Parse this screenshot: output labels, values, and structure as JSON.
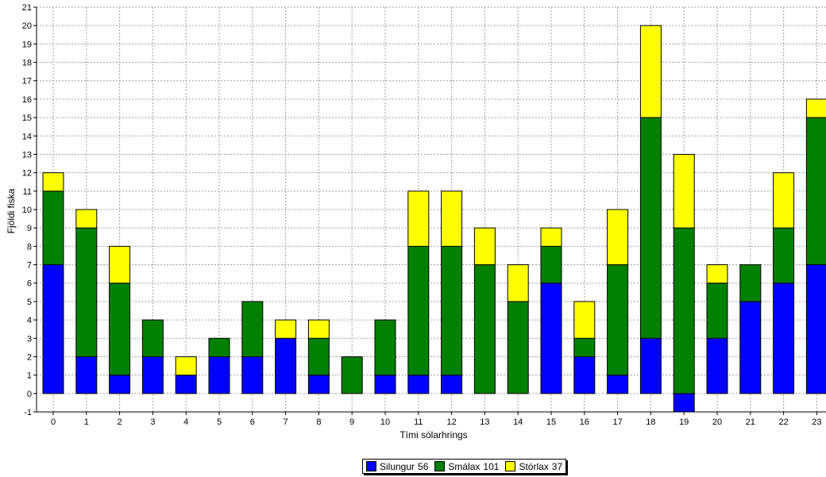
{
  "chart_data": {
    "type": "bar",
    "stacked": true,
    "xlabel": "Tími sólarhrings",
    "ylabel": "Fjöldi fiska",
    "ylim": [
      -1,
      21
    ],
    "grid": true,
    "legend_position": "bottom-center",
    "categories": [
      "0",
      "1",
      "2",
      "3",
      "4",
      "5",
      "6",
      "7",
      "8",
      "9",
      "10",
      "11",
      "12",
      "13",
      "14",
      "15",
      "16",
      "17",
      "18",
      "19",
      "20",
      "21",
      "22",
      "23"
    ],
    "series": [
      {
        "name": "Silungur",
        "total": "56",
        "color": "#0000ff",
        "values": [
          7,
          2,
          1,
          2,
          1,
          2,
          2,
          3,
          1,
          0,
          1,
          1,
          1,
          0,
          0,
          6,
          2,
          1,
          3,
          -1,
          3,
          5,
          6,
          7
        ]
      },
      {
        "name": "Smálax",
        "total": "101",
        "color": "#008000",
        "values": [
          4,
          7,
          5,
          2,
          0,
          1,
          3,
          0,
          2,
          2,
          3,
          7,
          7,
          7,
          5,
          2,
          1,
          6,
          12,
          9,
          3,
          2,
          3,
          8
        ]
      },
      {
        "name": "Stórlax",
        "total": "37",
        "color": "#ffff00",
        "values": [
          1,
          1,
          2,
          0,
          1,
          0,
          0,
          1,
          1,
          0,
          0,
          3,
          3,
          2,
          2,
          1,
          2,
          3,
          5,
          4,
          1,
          0,
          3,
          1
        ]
      }
    ]
  }
}
